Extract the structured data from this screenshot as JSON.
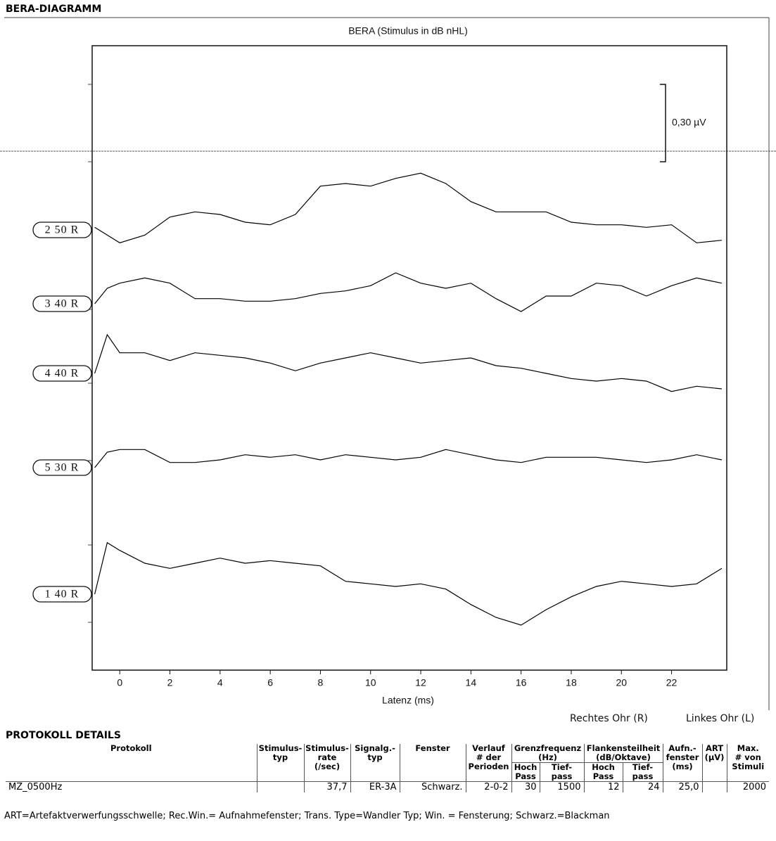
{
  "section_title": "BERA-DIAGRAMM",
  "chart_data": {
    "type": "line",
    "title": "BERA (Stimulus in dB nHL)",
    "xlabel": "Latenz (ms)",
    "x": [
      -1,
      -0.5,
      0,
      1,
      2,
      3,
      4,
      5,
      6,
      7,
      8,
      9,
      10,
      11,
      12,
      13,
      14,
      15,
      16,
      17,
      18,
      19,
      20,
      21,
      22,
      23,
      24
    ],
    "xlim": [
      -1.1,
      24.2
    ],
    "xticks": [
      0,
      2,
      4,
      6,
      8,
      10,
      12,
      14,
      16,
      18,
      20,
      22
    ],
    "scale_bar": {
      "value": 0.3,
      "label": "0,30 µV"
    },
    "series": [
      {
        "name": "2 50 R",
        "color": "#000000",
        "values": [
          0.01,
          -0.02,
          -0.05,
          -0.02,
          0.05,
          0.07,
          0.06,
          0.03,
          0.02,
          0.06,
          0.17,
          0.18,
          0.17,
          0.2,
          0.22,
          0.18,
          0.11,
          0.07,
          0.07,
          0.07,
          0.03,
          0.02,
          0.02,
          0.01,
          0.02,
          -0.05,
          -0.04
        ]
      },
      {
        "name": "3 40 R",
        "color": "#000000",
        "values": [
          0.0,
          0.06,
          0.08,
          0.1,
          0.08,
          0.02,
          0.02,
          0.01,
          0.01,
          0.02,
          0.04,
          0.05,
          0.07,
          0.12,
          0.08,
          0.06,
          0.08,
          0.02,
          -0.03,
          0.03,
          0.03,
          0.08,
          0.07,
          0.03,
          0.07,
          0.1,
          0.08
        ]
      },
      {
        "name": "4 40 R",
        "color": "#000000",
        "values": [
          0.0,
          0.15,
          0.08,
          0.08,
          0.05,
          0.08,
          0.07,
          0.06,
          0.04,
          0.01,
          0.04,
          0.06,
          0.08,
          0.06,
          0.04,
          0.05,
          0.06,
          0.03,
          0.02,
          0.0,
          -0.02,
          -0.03,
          -0.02,
          -0.03,
          -0.07,
          -0.05,
          -0.06
        ]
      },
      {
        "name": "5 30 R",
        "color": "#000000",
        "values": [
          0.0,
          0.06,
          0.07,
          0.07,
          0.02,
          0.02,
          0.03,
          0.05,
          0.04,
          0.05,
          0.03,
          0.05,
          0.04,
          0.03,
          0.04,
          0.07,
          0.05,
          0.03,
          0.02,
          0.04,
          0.04,
          0.04,
          0.03,
          0.02,
          0.03,
          0.05,
          0.03
        ]
      },
      {
        "name": "1 40 R",
        "color": "#000000",
        "values": [
          0.0,
          0.2,
          0.17,
          0.12,
          0.1,
          0.12,
          0.14,
          0.12,
          0.13,
          0.12,
          0.11,
          0.05,
          0.04,
          0.03,
          0.04,
          0.02,
          -0.04,
          -0.09,
          -0.12,
          -0.06,
          -0.01,
          0.03,
          0.05,
          0.04,
          0.03,
          0.04,
          0.1
        ]
      }
    ],
    "ear_labels": [
      "Rechtes Ohr (R)",
      "Linkes Ohr (L)"
    ]
  },
  "protocol": {
    "title": "PROTOKOLL DETAILS",
    "headers": [
      "Protokoll",
      "Stimulus-\ntyp",
      "Stimulus-\nrate\n(/sec)",
      "Signalg.-\ntyp",
      "Fenster",
      "Verlauf\n# der\nPerioden",
      "Grenzfrequenz\n(Hz)",
      "Flankensteilheit\n(dB/Oktave)",
      "Aufn.-\nfenster\n(ms)",
      "ART\n(µV)",
      "Max.\n# von\nStimuli"
    ],
    "subheaders": [
      "Hoch\nPass",
      "Tief-\npass",
      "Hoch\nPass",
      "Tief-\npass"
    ],
    "rows": [
      [
        "MZ_0500Hz",
        null,
        "37,7",
        "ER-3A",
        "Schwarz.",
        "2-0-2",
        "30",
        "1500",
        "12",
        "24",
        "25,0",
        null,
        "2000"
      ]
    ],
    "footnote": "ART=Artefaktverwerfungsschwelle; Rec.Win.= Aufnahmefenster; Trans. Type=Wandler Typ; Win. = Fensterung; Schwarz.=Blackman"
  }
}
